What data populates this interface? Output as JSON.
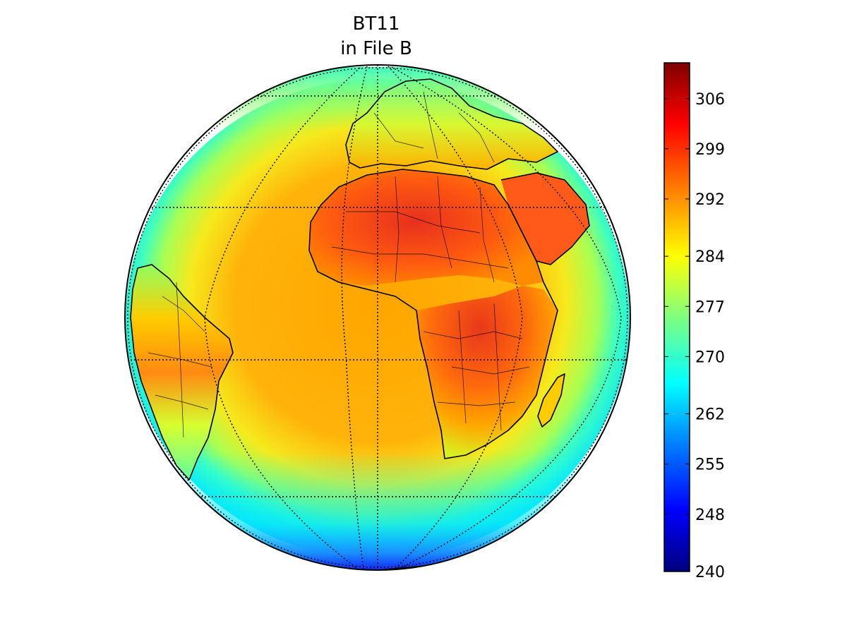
{
  "title": {
    "line1": "BT11",
    "line2": "in File B"
  },
  "colorbar": {
    "min": 240,
    "max": 311,
    "ticks": [
      "240",
      "248",
      "255",
      "262",
      "270",
      "277",
      "284",
      "292",
      "299",
      "306"
    ],
    "colormap": "jet",
    "colors": [
      "#00007f",
      "#0000ff",
      "#007fff",
      "#00ffff",
      "#7fff7f",
      "#ffff00",
      "#ff7f00",
      "#ff0000",
      "#7f0000"
    ]
  },
  "map": {
    "projection": "orthographic",
    "center": {
      "lon": 0,
      "lat": 0
    },
    "parallels": [
      -60,
      -30,
      0,
      30,
      60
    ],
    "meridians": [
      -60,
      -30,
      0,
      30,
      60
    ],
    "gridline_style": "dotted",
    "regions": [
      "Africa",
      "Europe",
      "South America",
      "Arabian Peninsula",
      "Madagascar",
      "Atlantic Ocean"
    ]
  },
  "chart_data": {
    "type": "heatmap",
    "variable": "BT11",
    "range": [
      240,
      311
    ],
    "colormap": "jet"
  }
}
